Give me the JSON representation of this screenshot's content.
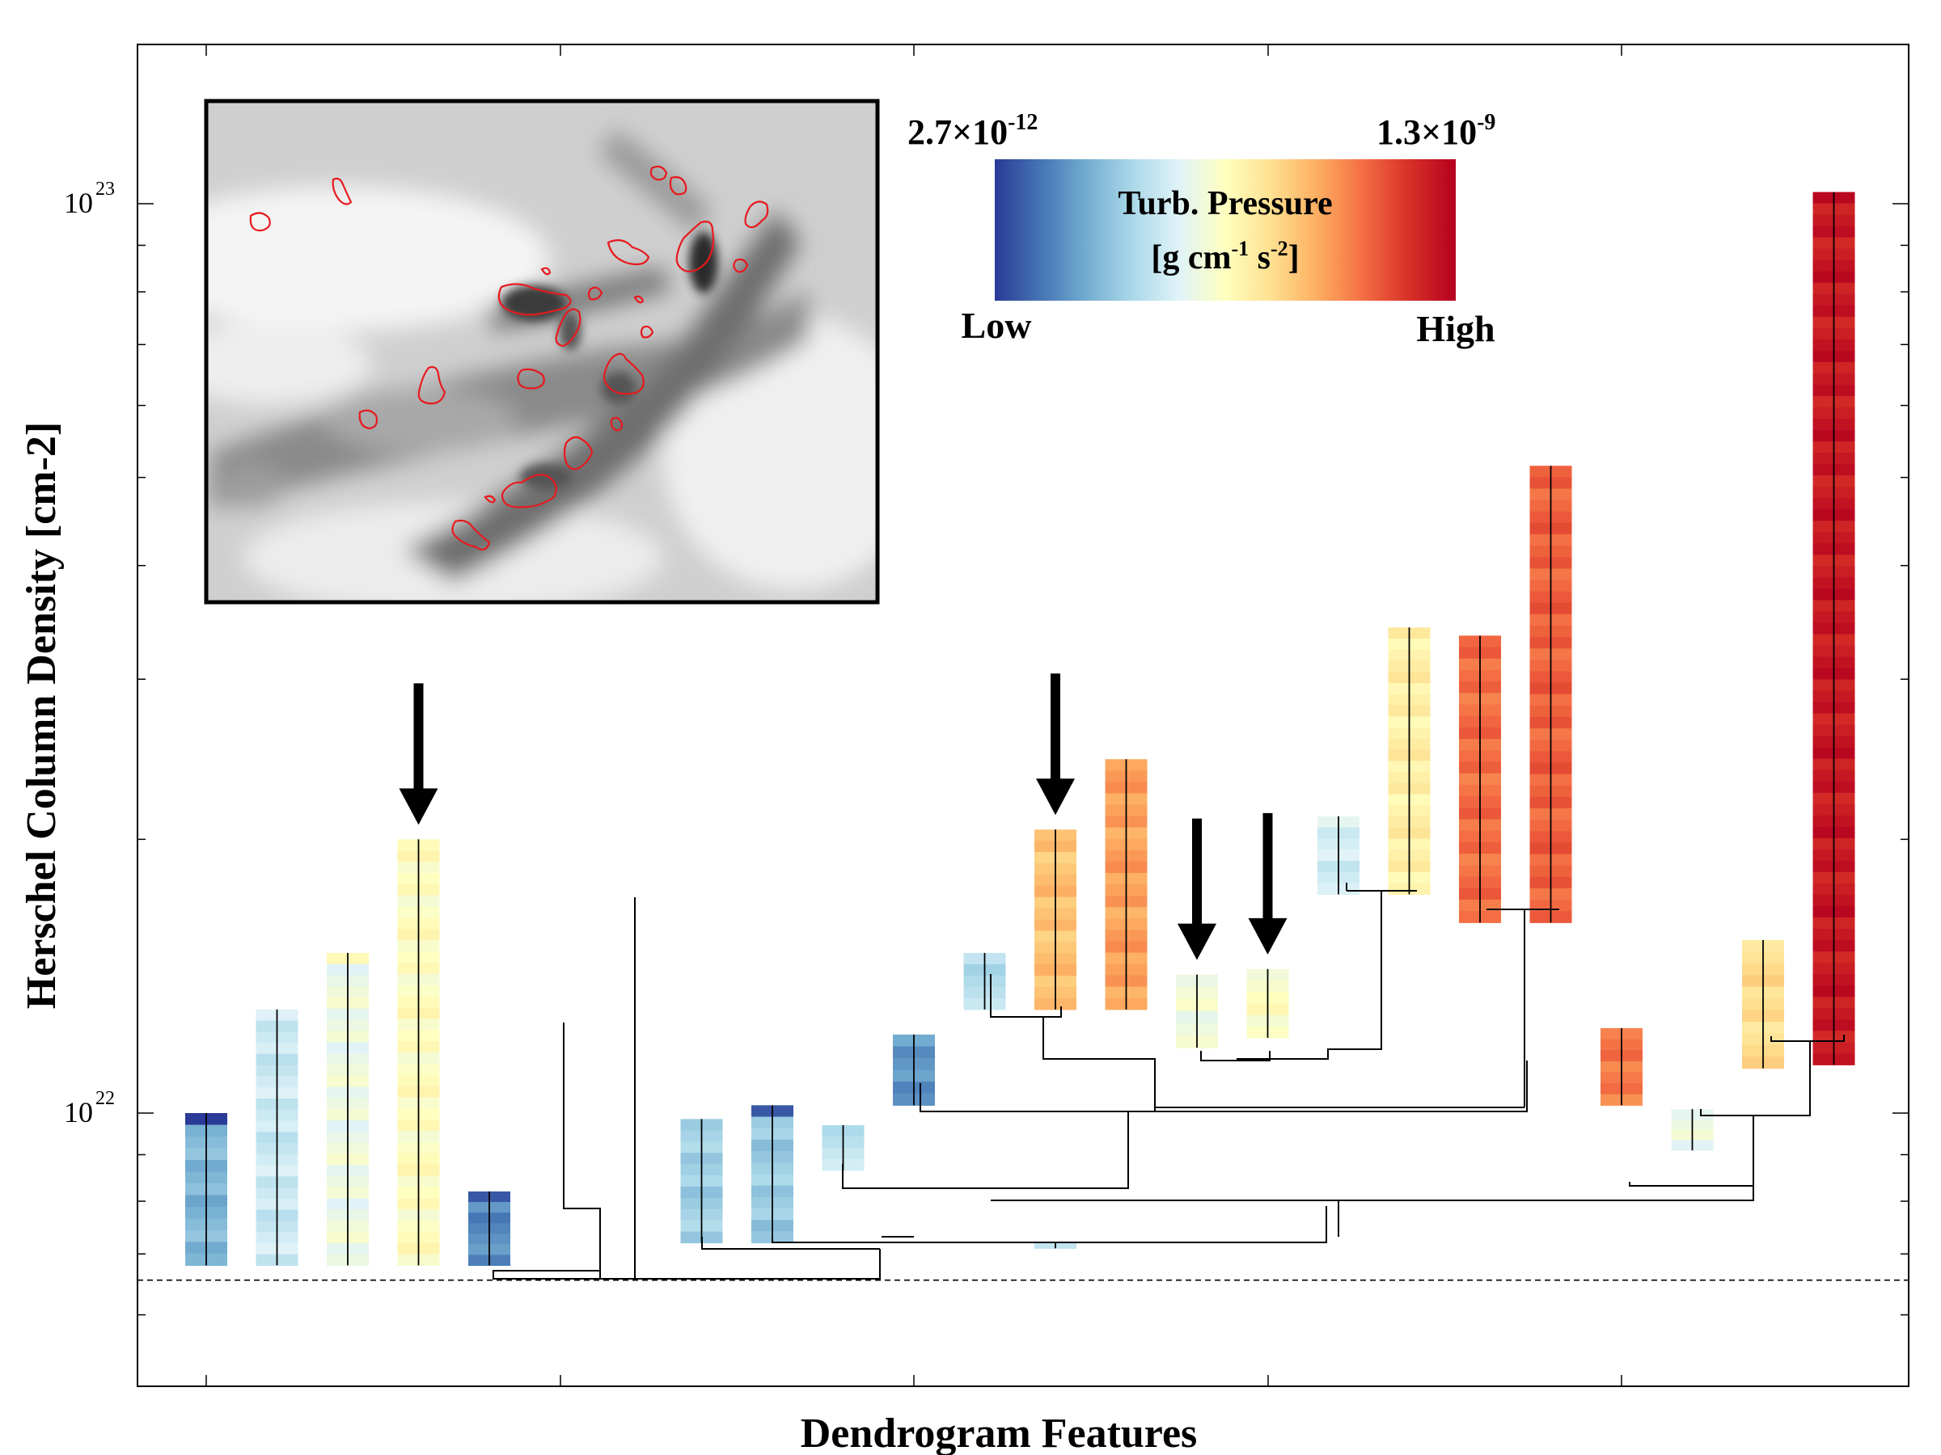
{
  "chart_data": {
    "type": "dendrogram",
    "xlabel": "Dendrogram Features",
    "ylabel": "Herschel Column Density [cm-2]",
    "yscale": "log",
    "ylim": [
      4.7e+21,
      1.5e+23
    ],
    "y_ticks": [
      {
        "value": 1e+22,
        "label_base": "10",
        "label_exp": "22"
      },
      {
        "value": 1e+23,
        "label_base": "10",
        "label_exp": "23"
      }
    ],
    "baseline": 6.55e+21,
    "colorbar": {
      "title_line1": "Turb. Pressure",
      "title_line2": "[g cm",
      "title_line2_exp1": "-1",
      "title_line2_mid": " s",
      "title_line2_exp2": "-2",
      "title_line2_end": "]",
      "min_label": "2.7×10",
      "min_exp": "-12",
      "max_label": "1.3×10",
      "max_exp": "-9",
      "low_label": "Low",
      "high_label": "High",
      "colors": [
        "#2a3a97",
        "#4575b4",
        "#74add1",
        "#abd9e9",
        "#e0f3f8",
        "#ffffbf",
        "#fee090",
        "#fdae61",
        "#f46d43",
        "#d73027",
        "#b5001f"
      ]
    },
    "leaves": [
      {
        "x": 1,
        "ymin": 6.8e+21,
        "ymax": 1e+22,
        "pressure": 0.22,
        "top_pressure": 0.0
      },
      {
        "x": 2,
        "ymin": 6.8e+21,
        "ymax": 1.3e+22,
        "pressure": 0.36
      },
      {
        "x": 3,
        "ymin": 6.8e+21,
        "ymax": 1.5e+22,
        "pressure": 0.44,
        "top_pressure": 0.52
      },
      {
        "x": 4,
        "ymin": 6.8e+21,
        "ymax": 2e+22,
        "pressure": 0.5
      },
      {
        "x": 5,
        "ymin": 6.8e+21,
        "ymax": 8.2e+21,
        "pressure": 0.14,
        "top_pressure": 0.05
      },
      {
        "x": 8,
        "ymin": 7.2e+21,
        "ymax": 9.85e+21,
        "pressure": 0.28
      },
      {
        "x": 9,
        "ymin": 7.2e+21,
        "ymax": 1.02e+22,
        "pressure": 0.27,
        "top_pressure": 0.05
      },
      {
        "x": 10,
        "ymin": 8.65e+21,
        "ymax": 9.7e+21,
        "pressure": 0.34
      },
      {
        "x": 11,
        "ymin": 1.02e+22,
        "ymax": 1.22e+22,
        "pressure": 0.16
      },
      {
        "x": 12,
        "ymin": 1.3e+22,
        "ymax": 1.5e+22,
        "pressure": 0.32
      },
      {
        "x": 13,
        "ymin": 7.1e+21,
        "ymax": 7.2e+21,
        "pressure": 0.33
      },
      {
        "x": 13,
        "ymin": 1.3e+22,
        "ymax": 2.05e+22,
        "pressure": 0.66
      },
      {
        "x": 14,
        "ymin": 1.3e+22,
        "ymax": 2.45e+22,
        "pressure": 0.72
      },
      {
        "x": 15,
        "ymin": 1.18e+22,
        "ymax": 1.42e+22,
        "pressure": 0.46
      },
      {
        "x": 16,
        "ymin": 1.21e+22,
        "ymax": 1.44e+22,
        "pressure": 0.49
      },
      {
        "x": 17,
        "ymin": 1.74e+22,
        "ymax": 2.12e+22,
        "pressure": 0.38
      },
      {
        "x": 18,
        "ymin": 1.74e+22,
        "ymax": 3.42e+22,
        "pressure": 0.55
      },
      {
        "x": 19,
        "ymin": 1.62e+22,
        "ymax": 3.35e+22,
        "pressure": 0.8
      },
      {
        "x": 20,
        "ymin": 1.62e+22,
        "ymax": 5.15e+22,
        "pressure": 0.82
      },
      {
        "x": 21,
        "ymin": 1.02e+22,
        "ymax": 1.24e+22,
        "pressure": 0.78
      },
      {
        "x": 22,
        "ymin": 9.1e+21,
        "ymax": 1.01e+22,
        "pressure": 0.44
      },
      {
        "x": 23,
        "ymin": 1.12e+22,
        "ymax": 1.55e+22,
        "pressure": 0.6
      },
      {
        "x": 24,
        "ymin": 1.13e+22,
        "ymax": 1.03e+23,
        "pressure": 0.95
      }
    ],
    "arrows_over_leaves": [
      4,
      13,
      15,
      16
    ]
  },
  "inset": {
    "description": "Herschel column density map with red dendrogram leaf contours"
  }
}
